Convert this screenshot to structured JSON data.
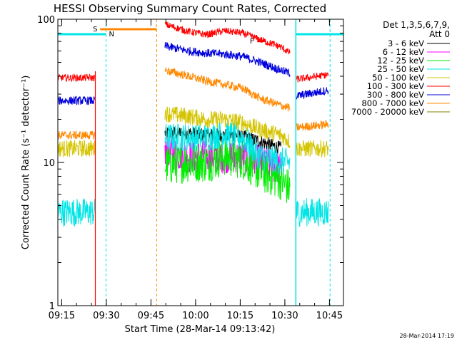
{
  "chart_data": {
    "type": "line",
    "title": "HESSI Observing Summary Count Rates, Corrected",
    "xlabel": "Start Time (28-Mar-14 09:13:42)",
    "ylabel": "Corrected Count Rate (s⁻¹ detector⁻¹)",
    "x_axis": {
      "unit": "minutes after 09:13:42",
      "range": [
        0,
        96
      ]
    },
    "yscale": "log",
    "ylim": [
      1,
      100
    ],
    "x_ticks": [
      "09:15",
      "09:30",
      "09:45",
      "10:00",
      "10:15",
      "10:30",
      "10:45"
    ],
    "y_ticks": [
      "1",
      "10",
      "100"
    ],
    "legend_title_1": "Det 1,3,5,6,7,9,",
    "legend_title_2": "Att 0",
    "legend_placement": "right",
    "series": [
      {
        "name": "3 - 6 keV",
        "color": "#000000",
        "segments": [
          [
            [
              36,
              16
            ],
            [
              44,
              16
            ],
            [
              50,
              15.5
            ],
            [
              60,
              15.5
            ],
            [
              68,
              14
            ],
            [
              75,
              12.5
            ]
          ]
        ]
      },
      {
        "name": "6 - 12 keV",
        "color": "#ff00ff",
        "segments": [
          [
            [
              36,
              12
            ],
            [
              44,
              11
            ],
            [
              50,
              11
            ],
            [
              56,
              11
            ],
            [
              62,
              11
            ],
            [
              68,
              10
            ],
            [
              75,
              9
            ]
          ]
        ]
      },
      {
        "name": "12 - 25 keV",
        "color": "#00ee00",
        "segments": [
          [
            [
              36,
              9.5
            ],
            [
              44,
              10
            ],
            [
              50,
              10
            ],
            [
              56,
              11
            ],
            [
              62,
              10.5
            ],
            [
              68,
              8.5
            ],
            [
              75,
              7.5
            ],
            [
              78,
              6.5
            ]
          ]
        ]
      },
      {
        "name": "25 - 50 keV",
        "color": "#00e5e5",
        "segments": [
          [
            [
              0,
              4.5
            ],
            [
              12.6,
              4.5
            ]
          ],
          [
            [
              36,
              15
            ],
            [
              44,
              15
            ],
            [
              50,
              15
            ],
            [
              56,
              16
            ],
            [
              62,
              15
            ],
            [
              68,
              11
            ],
            [
              75,
              10.2
            ],
            [
              78,
              10
            ]
          ],
          [
            [
              80,
              4.5
            ],
            [
              91,
              4.5
            ]
          ]
        ]
      },
      {
        "name": "50 - 100 keV",
        "color": "#d4c400",
        "segments": [
          [
            [
              0,
              12.5
            ],
            [
              12.6,
              12.5
            ]
          ],
          [
            [
              36,
              22
            ],
            [
              44,
              21
            ],
            [
              50,
              20
            ],
            [
              56,
              20
            ],
            [
              62,
              19
            ],
            [
              68,
              17
            ],
            [
              75,
              15.5
            ],
            [
              78,
              14
            ]
          ],
          [
            [
              80,
              12.5
            ],
            [
              91,
              12.5
            ]
          ]
        ]
      },
      {
        "name": "100 - 300 keV",
        "color": "#ff0000",
        "segments": [
          [
            [
              0,
              39
            ],
            [
              12.6,
              39
            ]
          ],
          [
            [
              36,
              92
            ],
            [
              44,
              82
            ],
            [
              50,
              78
            ],
            [
              56,
              83
            ],
            [
              62,
              80
            ],
            [
              68,
              72
            ],
            [
              75,
              64
            ],
            [
              78,
              58
            ]
          ],
          [
            [
              80,
              38
            ],
            [
              91,
              41
            ]
          ]
        ]
      },
      {
        "name": "300 - 800 keV",
        "color": "#0000dd",
        "segments": [
          [
            [
              0,
              27
            ],
            [
              12.6,
              27
            ]
          ],
          [
            [
              36,
              65
            ],
            [
              44,
              60
            ],
            [
              50,
              58
            ],
            [
              56,
              57
            ],
            [
              62,
              55
            ],
            [
              68,
              50
            ],
            [
              75,
              44
            ],
            [
              78,
              42
            ]
          ],
          [
            [
              80,
              29
            ],
            [
              91,
              32
            ]
          ]
        ]
      },
      {
        "name": "800 - 7000 keV",
        "color": "#ff8800",
        "segments": [
          [
            [
              0,
              15.5
            ],
            [
              12.6,
              15.5
            ]
          ],
          [
            [
              36,
              44
            ],
            [
              44,
              40
            ],
            [
              50,
              37
            ],
            [
              56,
              35
            ],
            [
              62,
              33
            ],
            [
              68,
              28
            ],
            [
              75,
              25
            ],
            [
              78,
              24
            ]
          ],
          [
            [
              80,
              17.5
            ],
            [
              91,
              18.5
            ]
          ]
        ]
      },
      {
        "name": "7000 - 20000 keV",
        "color": "#808000",
        "segments": []
      }
    ],
    "annotations": [
      {
        "label": "S",
        "x": 14.2,
        "color": "#ff8800"
      },
      {
        "label": "N",
        "x": 16.2,
        "color": "#00e5e5"
      },
      {
        "label": "F",
        "x": 65,
        "color": "#ff0000"
      }
    ]
  },
  "footer_date": "28-Mar-2014 17:19"
}
